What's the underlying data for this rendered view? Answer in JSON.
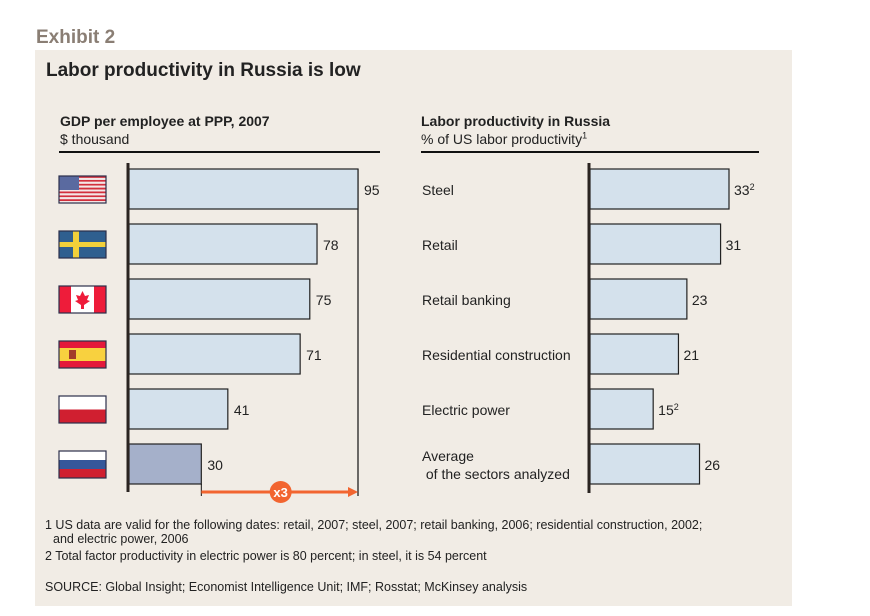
{
  "header": {
    "exhibit": "Exhibit 2",
    "title": "Labor productivity in Russia is low"
  },
  "colors": {
    "panel_bg": "#f1ece5",
    "bar_fill": "#d4e1ec",
    "bar_highlight": "#a5b0ca",
    "arrow": "#f26530"
  },
  "chart_data": [
    {
      "type": "bar",
      "orientation": "horizontal",
      "title": "GDP per employee at PPP, 2007",
      "subtitle": "$ thousand",
      "categories": [
        "United States",
        "Sweden",
        "Canada",
        "Spain",
        "Poland",
        "Russia"
      ],
      "category_icons": [
        "us-flag-icon",
        "sweden-flag-icon",
        "canada-flag-icon",
        "spain-flag-icon",
        "poland-flag-icon",
        "russia-flag-icon"
      ],
      "values": [
        95,
        78,
        75,
        71,
        41,
        30
      ],
      "value_labels": [
        "95",
        "78",
        "75",
        "71",
        "41",
        "30"
      ],
      "highlight": "Russia",
      "annotation": {
        "label": "x3",
        "from_value": 30,
        "to_value": 95
      },
      "xlim": [
        0,
        95
      ]
    },
    {
      "type": "bar",
      "orientation": "horizontal",
      "title": "Labor productivity in Russia",
      "subtitle": "% of US labor productivity",
      "subtitle_footnote": "1",
      "categories": [
        "Steel",
        "Retail",
        "Retail banking",
        "Residential construction",
        "Electric power",
        "Average of the sectors analyzed"
      ],
      "category_lines": [
        [
          "Steel"
        ],
        [
          "Retail"
        ],
        [
          "Retail banking"
        ],
        [
          "Residential construction"
        ],
        [
          "Electric power"
        ],
        [
          "Average",
          " of the sectors analyzed"
        ]
      ],
      "values": [
        33,
        31,
        23,
        21,
        15,
        26
      ],
      "value_labels": [
        "33",
        "31",
        "23",
        "21",
        "15",
        "26"
      ],
      "value_footnotes": [
        "2",
        "",
        "",
        "",
        "2",
        ""
      ],
      "xlim": [
        0,
        33
      ]
    }
  ],
  "footnotes": {
    "note1_line1": "1 US data are valid for the following dates: retail, 2007; steel, 2007; retail banking, 2006; residential construction, 2002;",
    "note1_line2": "and electric power, 2006",
    "note2": "2 Total factor productivity in electric power  is 80 percent; in steel, it is 54 percent",
    "source": "SOURCE: Global Insight; Economist Intelligence Unit; IMF; Rosstat; McKinsey analysis"
  }
}
